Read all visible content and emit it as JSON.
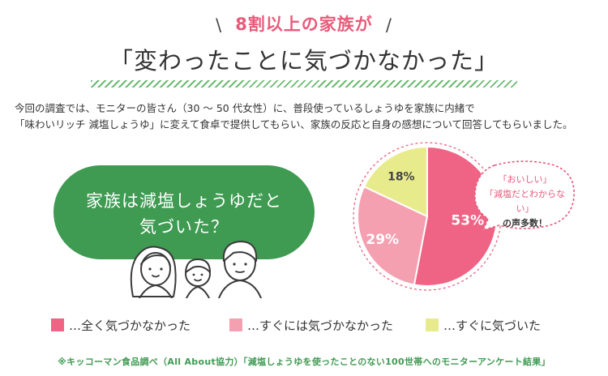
{
  "headline": {
    "text": "8割以上の家族が",
    "left_deco": "\\",
    "right_deco": "/"
  },
  "title": "「変わったことに気づかなかった」",
  "intro": {
    "line1": "今回の調査では、モニターの皆さん（30 ～ 50 代女性）に、普段使っているしょうゆを家族に内緒で",
    "line2": "「味わいリッチ 減塩しょうゆ」に変えて食卓で提供してもらい、家族の反応と自身の感想について回答してもらいました。"
  },
  "question": {
    "line1": "家族は減塩しょうゆだと",
    "line2": "気づいた？"
  },
  "bubble": {
    "line1": "「おいしい」",
    "line2": "「減塩だとわからない」",
    "line3": "の声多数！"
  },
  "colors": {
    "pink_dark": "#ef6384",
    "pink_light": "#f4a0b1",
    "yellow": "#e8eb8c",
    "green": "#3f9a52"
  },
  "chart_data": {
    "type": "pie",
    "unit": "%",
    "slices": [
      {
        "label": "…全く気づかなかった",
        "value": 53,
        "color": "#ef6384"
      },
      {
        "label": "…すぐには気づかなかった",
        "value": 29,
        "color": "#f4a0b1"
      },
      {
        "label": "…すぐに気づいた",
        "value": 18,
        "color": "#e8eb8c"
      }
    ]
  },
  "footer": "※キッコーマン食品調べ（All About協力）「減塩しょうゆを使ったことのない100世帯へのモニターアンケート結果」"
}
